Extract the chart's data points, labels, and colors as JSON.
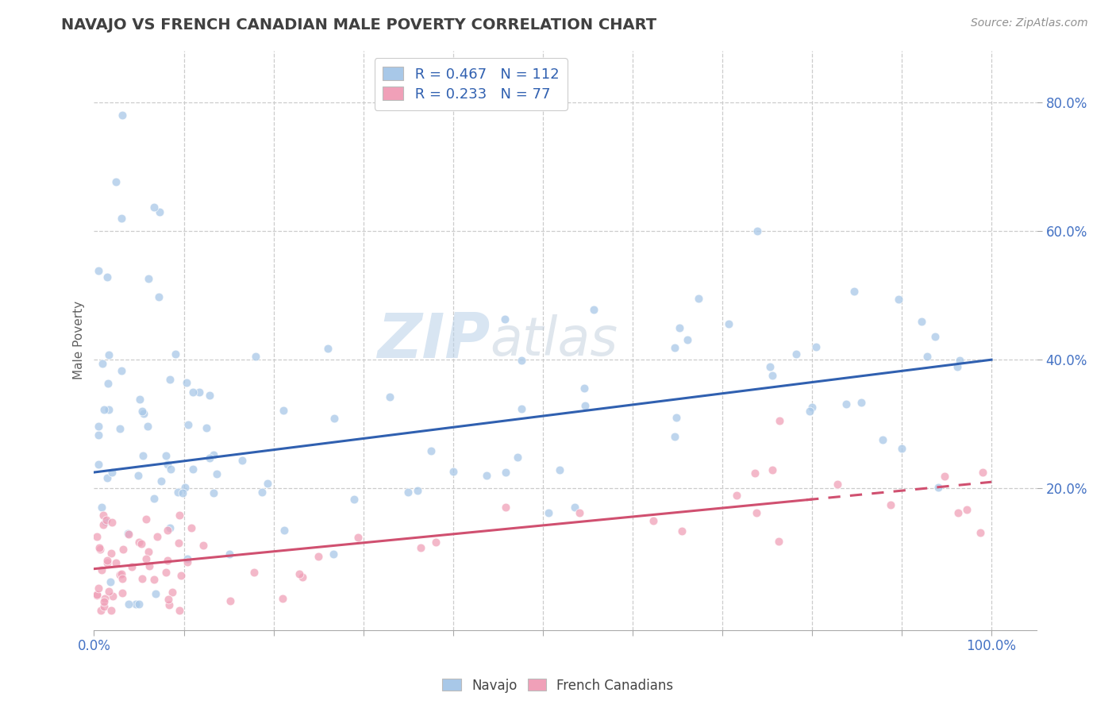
{
  "title": "NAVAJO VS FRENCH CANADIAN MALE POVERTY CORRELATION CHART",
  "source": "Source: ZipAtlas.com",
  "ylabel": "Male Poverty",
  "xlim": [
    0.0,
    1.05
  ],
  "ylim": [
    -0.02,
    0.88
  ],
  "navajo_color": "#A8C8E8",
  "french_color": "#F0A0B8",
  "navajo_line_color": "#3060B0",
  "french_line_color": "#D05070",
  "legend_R_navajo": "R = 0.467",
  "legend_N_navajo": "N = 112",
  "legend_R_french": "R = 0.233",
  "legend_N_french": "N = 77",
  "navajo_intercept": 0.225,
  "navajo_slope": 0.175,
  "french_intercept": 0.075,
  "french_slope": 0.135,
  "watermark_zip": "ZIP",
  "watermark_atlas": "atlas",
  "background_color": "#FFFFFF",
  "grid_color": "#CCCCCC",
  "title_color": "#404040",
  "axis_label_color": "#606060",
  "tick_label_color": "#4472C4",
  "source_color": "#909090"
}
